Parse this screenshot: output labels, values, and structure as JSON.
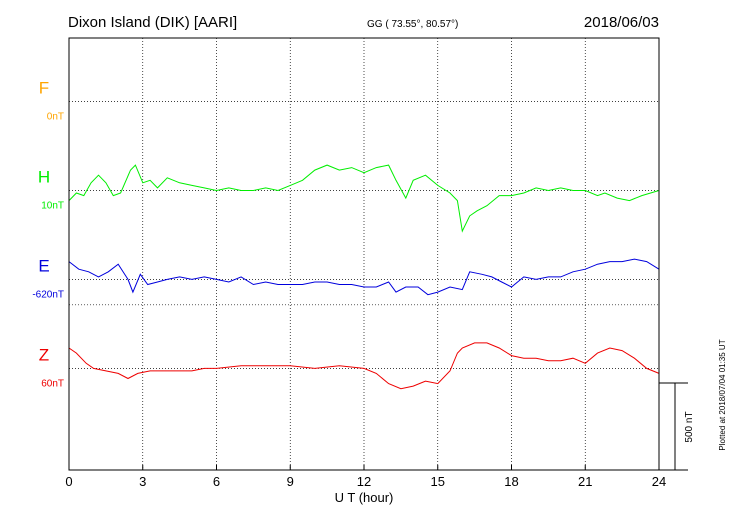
{
  "header": {
    "station": "Dixon Island (DIK)  [AARI]",
    "coords": "GG ( 73.55°,  80.57°)",
    "date": "2018/06/03"
  },
  "side_note": "Plotted at 2018/07/04 01:35 UT",
  "colors": {
    "F": "#ffa500",
    "H": "#00ee00",
    "E": "#0000dd",
    "Z": "#ee0000"
  },
  "chart_data": {
    "type": "line",
    "xlabel": "U T (hour)",
    "xlim": [
      0,
      24
    ],
    "xticks": [
      "0",
      "3",
      "6",
      "9",
      "12",
      "15",
      "18",
      "21",
      "24"
    ],
    "scale_bar": {
      "label": "500 nT",
      "value_nT": 500
    },
    "y_range_nT": [
      -400,
      1300
    ],
    "series": [
      {
        "name": "F",
        "baseline_label": "0nT",
        "offset_nT": 1050,
        "color": "#ffa500",
        "points": []
      },
      {
        "name": "H",
        "baseline_label": "10nT",
        "offset_nT": 700,
        "color": "#00ee00",
        "points": [
          [
            0,
            -40
          ],
          [
            0.3,
            -10
          ],
          [
            0.6,
            -20
          ],
          [
            0.9,
            30
          ],
          [
            1.2,
            60
          ],
          [
            1.5,
            30
          ],
          [
            1.8,
            -20
          ],
          [
            2.1,
            -10
          ],
          [
            2.5,
            80
          ],
          [
            2.7,
            100
          ],
          [
            3.0,
            30
          ],
          [
            3.3,
            40
          ],
          [
            3.6,
            10
          ],
          [
            4.0,
            50
          ],
          [
            4.5,
            30
          ],
          [
            5.0,
            20
          ],
          [
            5.5,
            10
          ],
          [
            6.0,
            0
          ],
          [
            6.5,
            10
          ],
          [
            7.0,
            0
          ],
          [
            7.5,
            0
          ],
          [
            8.0,
            10
          ],
          [
            8.5,
            0
          ],
          [
            9.0,
            20
          ],
          [
            9.5,
            40
          ],
          [
            10.0,
            80
          ],
          [
            10.5,
            100
          ],
          [
            11.0,
            80
          ],
          [
            11.5,
            90
          ],
          [
            12.0,
            70
          ],
          [
            12.5,
            90
          ],
          [
            13.0,
            100
          ],
          [
            13.3,
            40
          ],
          [
            13.7,
            -30
          ],
          [
            14.0,
            40
          ],
          [
            14.5,
            60
          ],
          [
            15.0,
            20
          ],
          [
            15.5,
            -10
          ],
          [
            15.8,
            -40
          ],
          [
            16.0,
            -160
          ],
          [
            16.3,
            -100
          ],
          [
            16.6,
            -80
          ],
          [
            17.0,
            -60
          ],
          [
            17.5,
            -20
          ],
          [
            18.0,
            -20
          ],
          [
            18.5,
            -10
          ],
          [
            19.0,
            10
          ],
          [
            19.5,
            0
          ],
          [
            20.0,
            10
          ],
          [
            20.5,
            0
          ],
          [
            21.0,
            0
          ],
          [
            21.5,
            -20
          ],
          [
            21.8,
            -10
          ],
          [
            22.3,
            -30
          ],
          [
            22.8,
            -40
          ],
          [
            23.3,
            -20
          ],
          [
            24.0,
            0
          ]
        ]
      },
      {
        "name": "E",
        "baseline_label": "-620nT",
        "offset_nT": 350,
        "color": "#0000dd",
        "points": [
          [
            0,
            70
          ],
          [
            0.4,
            40
          ],
          [
            0.8,
            30
          ],
          [
            1.2,
            10
          ],
          [
            1.6,
            30
          ],
          [
            2.0,
            60
          ],
          [
            2.4,
            0
          ],
          [
            2.6,
            -50
          ],
          [
            2.9,
            20
          ],
          [
            3.2,
            -20
          ],
          [
            3.6,
            -10
          ],
          [
            4.0,
            0
          ],
          [
            4.5,
            10
          ],
          [
            5.0,
            0
          ],
          [
            5.5,
            10
          ],
          [
            6.0,
            0
          ],
          [
            6.5,
            -10
          ],
          [
            7.0,
            10
          ],
          [
            7.5,
            -20
          ],
          [
            8.0,
            -10
          ],
          [
            8.5,
            -20
          ],
          [
            9.0,
            -20
          ],
          [
            9.5,
            -20
          ],
          [
            10.0,
            -10
          ],
          [
            10.5,
            -10
          ],
          [
            11.0,
            -20
          ],
          [
            11.5,
            -20
          ],
          [
            12.0,
            -30
          ],
          [
            12.5,
            -30
          ],
          [
            13.0,
            -10
          ],
          [
            13.3,
            -50
          ],
          [
            13.7,
            -30
          ],
          [
            14.2,
            -30
          ],
          [
            14.6,
            -60
          ],
          [
            15.0,
            -50
          ],
          [
            15.5,
            -30
          ],
          [
            16.0,
            -40
          ],
          [
            16.3,
            30
          ],
          [
            16.8,
            20
          ],
          [
            17.2,
            10
          ],
          [
            17.6,
            -10
          ],
          [
            18.0,
            -30
          ],
          [
            18.5,
            10
          ],
          [
            19.0,
            0
          ],
          [
            19.5,
            10
          ],
          [
            20.0,
            10
          ],
          [
            20.5,
            30
          ],
          [
            21.0,
            40
          ],
          [
            21.5,
            60
          ],
          [
            22.0,
            70
          ],
          [
            22.5,
            70
          ],
          [
            23.0,
            80
          ],
          [
            23.5,
            70
          ],
          [
            24.0,
            40
          ]
        ]
      },
      {
        "name": "Z",
        "baseline_label": "60nT",
        "offset_nT": 0,
        "color": "#ee0000",
        "points": [
          [
            0,
            80
          ],
          [
            0.3,
            60
          ],
          [
            0.7,
            20
          ],
          [
            1.0,
            0
          ],
          [
            1.5,
            -10
          ],
          [
            2.0,
            -20
          ],
          [
            2.4,
            -40
          ],
          [
            2.8,
            -20
          ],
          [
            3.3,
            -10
          ],
          [
            4.0,
            -10
          ],
          [
            4.5,
            -10
          ],
          [
            5.0,
            -10
          ],
          [
            5.5,
            0
          ],
          [
            6.0,
            0
          ],
          [
            7.0,
            10
          ],
          [
            8.0,
            10
          ],
          [
            9.0,
            10
          ],
          [
            10.0,
            0
          ],
          [
            11.0,
            10
          ],
          [
            12.0,
            0
          ],
          [
            12.5,
            -20
          ],
          [
            13.0,
            -60
          ],
          [
            13.5,
            -80
          ],
          [
            14.0,
            -70
          ],
          [
            14.5,
            -50
          ],
          [
            15.0,
            -60
          ],
          [
            15.5,
            -10
          ],
          [
            15.8,
            60
          ],
          [
            16.0,
            80
          ],
          [
            16.5,
            100
          ],
          [
            17.0,
            100
          ],
          [
            17.5,
            80
          ],
          [
            18.0,
            50
          ],
          [
            18.5,
            40
          ],
          [
            19.0,
            40
          ],
          [
            19.5,
            30
          ],
          [
            20.0,
            30
          ],
          [
            20.5,
            40
          ],
          [
            21.0,
            20
          ],
          [
            21.5,
            60
          ],
          [
            22.0,
            80
          ],
          [
            22.5,
            70
          ],
          [
            23.0,
            40
          ],
          [
            23.5,
            0
          ],
          [
            24.0,
            -20
          ]
        ]
      }
    ]
  }
}
